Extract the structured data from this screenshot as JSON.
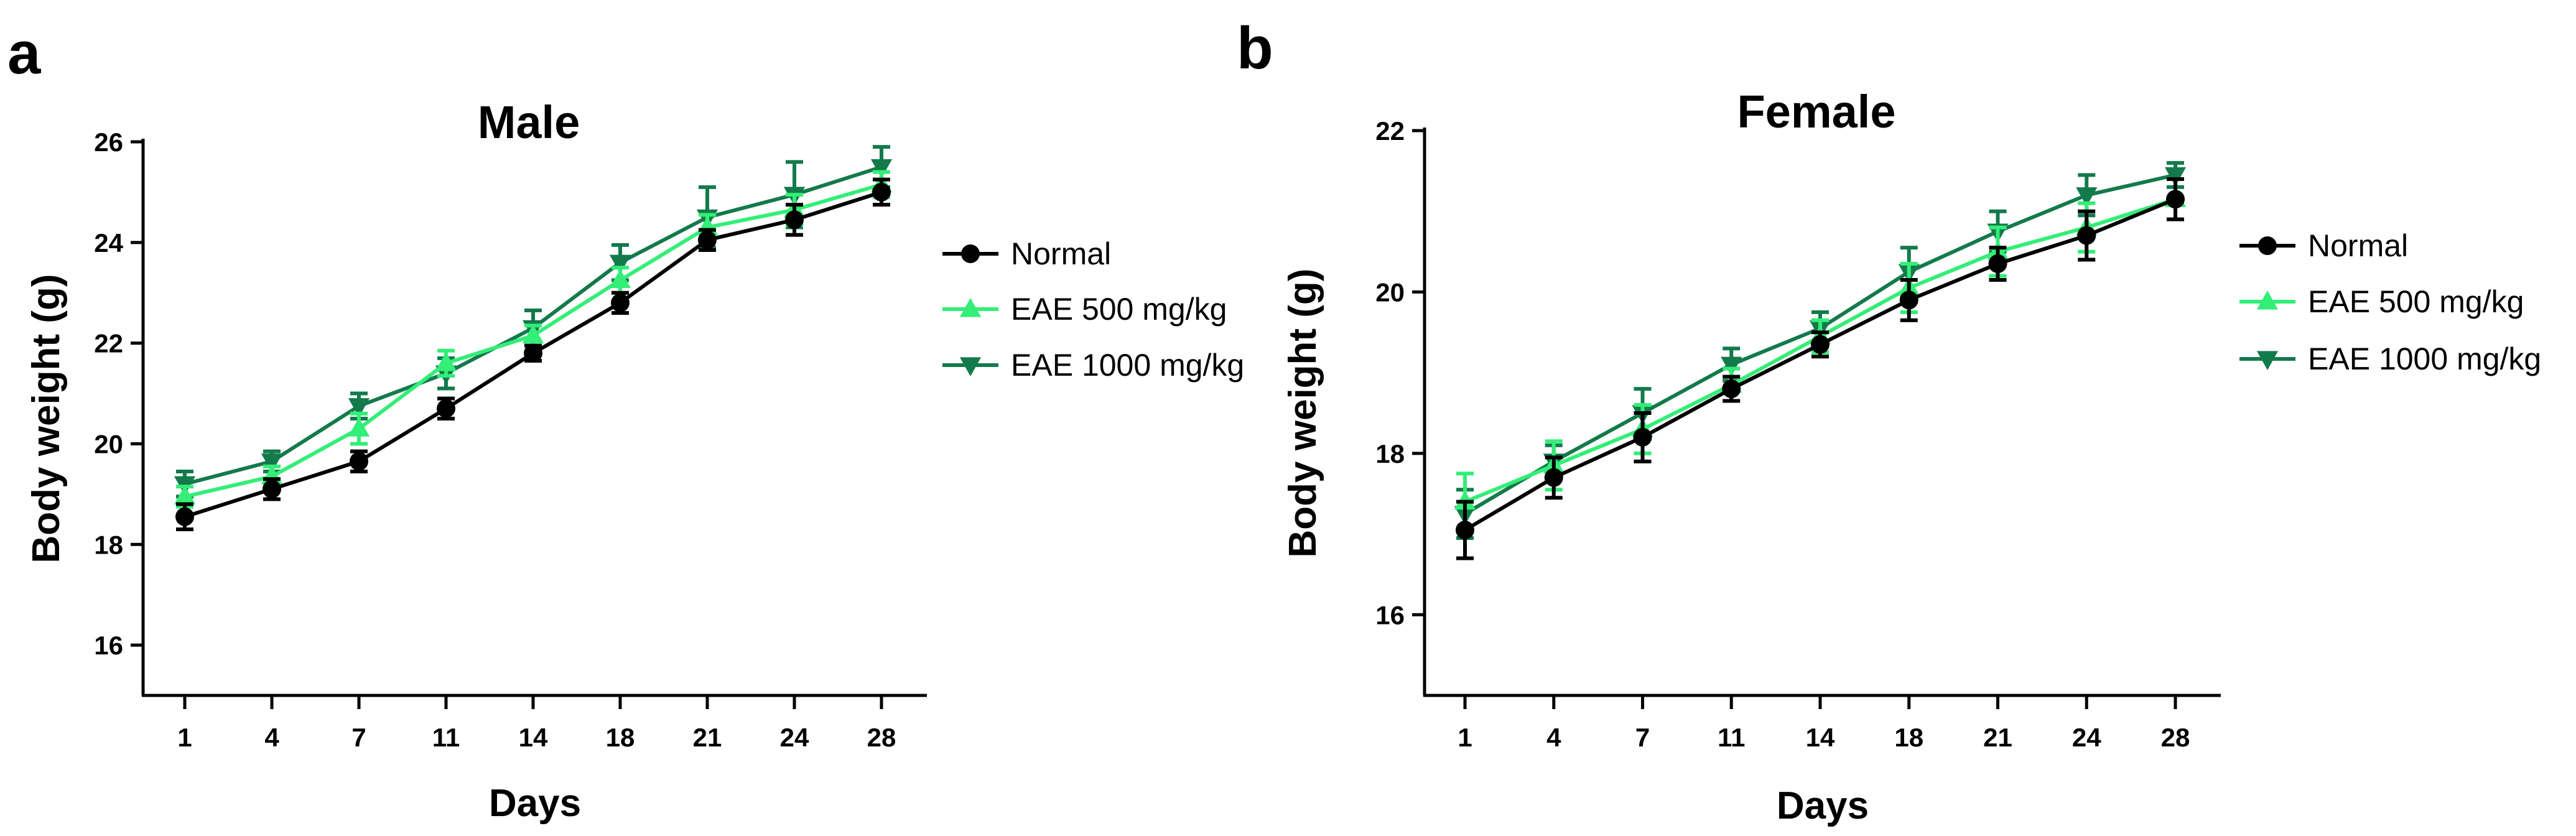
{
  "chart_data": [
    {
      "panel_label": "a",
      "type": "line",
      "title": "Male",
      "xlabel": "Days",
      "ylabel": "Body weight (g)",
      "categories": [
        "1",
        "4",
        "7",
        "11",
        "14",
        "18",
        "21",
        "24",
        "28"
      ],
      "ylim": [
        15,
        26
      ],
      "yticks": [
        16,
        18,
        20,
        22,
        24,
        26
      ],
      "legend_position": "right",
      "series": [
        {
          "name": "Normal",
          "marker": "circle",
          "color": "#000000",
          "values": [
            18.55,
            19.1,
            19.65,
            20.7,
            21.8,
            22.8,
            24.05,
            24.45,
            25.0
          ],
          "errors": [
            0.25,
            0.2,
            0.2,
            0.2,
            0.15,
            0.2,
            0.2,
            0.3,
            0.25
          ]
        },
        {
          "name": "EAE 500 mg/kg",
          "marker": "triangle-up",
          "color": "#33ee77",
          "values": [
            18.95,
            19.35,
            20.3,
            21.6,
            22.15,
            23.25,
            24.3,
            24.65,
            25.15
          ],
          "errors": [
            0.2,
            0.2,
            0.3,
            0.25,
            0.2,
            0.25,
            0.25,
            0.3,
            0.25
          ]
        },
        {
          "name": "EAE 1000 mg/kg",
          "marker": "triangle-down",
          "color": "#137a4b",
          "values": [
            19.2,
            19.65,
            20.75,
            21.4,
            22.3,
            23.6,
            24.5,
            24.95,
            25.5
          ],
          "errors": [
            0.25,
            0.2,
            0.25,
            0.3,
            0.35,
            0.35,
            0.6,
            0.65,
            0.4
          ]
        }
      ]
    },
    {
      "panel_label": "b",
      "type": "line",
      "title": "Female",
      "xlabel": "Days",
      "ylabel": "Body weight (g)",
      "categories": [
        "1",
        "4",
        "7",
        "11",
        "14",
        "18",
        "21",
        "24",
        "28"
      ],
      "ylim": [
        15,
        22
      ],
      "yticks": [
        16,
        18,
        20,
        22
      ],
      "legend_position": "right",
      "series": [
        {
          "name": "Normal",
          "marker": "circle",
          "color": "#000000",
          "values": [
            17.05,
            17.7,
            18.2,
            18.8,
            19.35,
            19.9,
            20.35,
            20.7,
            21.15
          ],
          "errors": [
            0.35,
            0.25,
            0.3,
            0.15,
            0.15,
            0.25,
            0.2,
            0.3,
            0.25
          ]
        },
        {
          "name": "EAE 500 mg/kg",
          "marker": "triangle-up",
          "color": "#33ee77",
          "values": [
            17.4,
            17.85,
            18.3,
            18.85,
            19.45,
            20.05,
            20.5,
            20.8,
            21.15
          ],
          "errors": [
            0.35,
            0.3,
            0.3,
            0.2,
            0.2,
            0.3,
            0.3,
            0.3,
            0.25
          ]
        },
        {
          "name": "EAE 1000 mg/kg",
          "marker": "triangle-down",
          "color": "#137a4b",
          "values": [
            17.25,
            17.9,
            18.5,
            19.1,
            19.55,
            20.25,
            20.75,
            21.2,
            21.45
          ],
          "errors": [
            0.3,
            0.2,
            0.3,
            0.2,
            0.2,
            0.3,
            0.25,
            0.25,
            0.15
          ]
        }
      ]
    }
  ]
}
